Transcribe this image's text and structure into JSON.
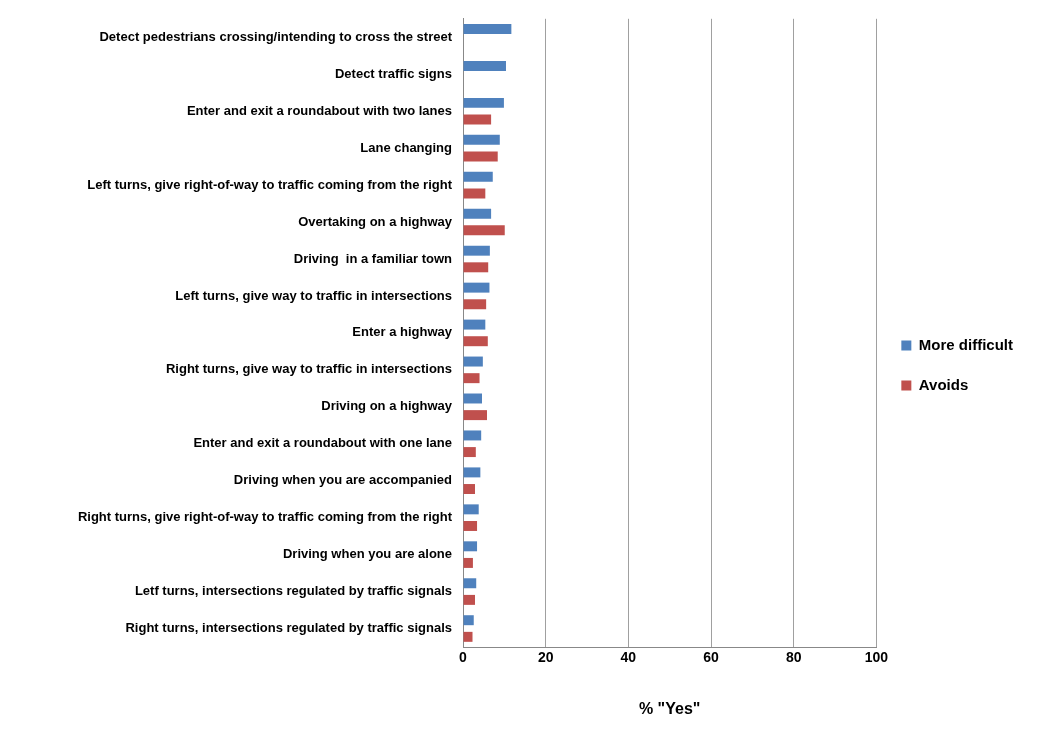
{
  "chart_data": {
    "type": "bar",
    "orientation": "horizontal",
    "xlabel": "% \"Yes\"",
    "categories": [
      "Detect pedestrians crossing/intending to cross the street",
      "Detect traffic signs",
      "Enter and exit a roundabout with two lanes",
      "Lane changing",
      "Left turns, give right-of-way to traffic coming from the right",
      "Overtaking on a highway",
      "Driving  in a familiar town",
      "Left turns, give way to traffic in intersections",
      "Enter a highway",
      "Right turns, give way to traffic in intersections",
      "Driving on a highway",
      "Enter and exit a roundabout with one lane",
      "Driving when you are accompanied",
      "Right turns, give right-of-way to traffic coming from the right",
      "Driving when you are alone",
      "Letf turns, intersections regulated by traffic signals",
      "Right turns, intersections regulated by traffic signals"
    ],
    "series": [
      {
        "name": "More difficult",
        "color": "#4f81bd",
        "values": [
          11.7,
          10.4,
          9.9,
          8.9,
          7.2,
          6.8,
          6.5,
          6.4,
          5.4,
          4.8,
          4.6,
          4.4,
          4.2,
          3.8,
          3.4,
          3.2,
          2.6
        ]
      },
      {
        "name": "Avoids",
        "color": "#c0504d",
        "values": [
          null,
          null,
          6.8,
          8.4,
          5.4,
          10.1,
          6.1,
          5.6,
          6.0,
          4.0,
          5.8,
          3.1,
          2.9,
          3.4,
          2.4,
          2.9,
          2.3
        ]
      }
    ],
    "xlim": [
      0,
      100
    ],
    "xticks": [
      0,
      20,
      40,
      60,
      80,
      100
    ],
    "grid": "x",
    "legend": "right"
  }
}
